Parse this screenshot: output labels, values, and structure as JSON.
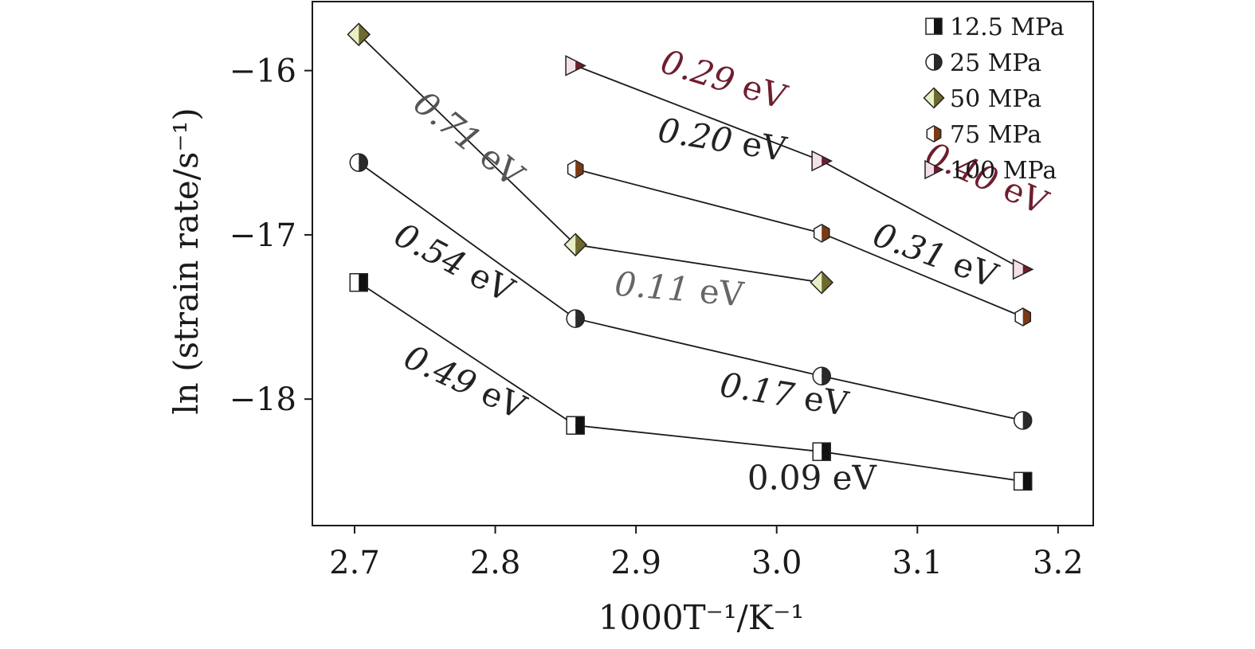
{
  "chart_data": {
    "type": "scatter",
    "xlabel": "1000T⁻¹/K⁻¹",
    "ylabel": "ln (strain rate/s⁻¹)",
    "xlim": [
      2.67,
      3.225
    ],
    "ylim": [
      -18.77,
      -15.58
    ],
    "xticks": [
      2.7,
      2.8,
      2.9,
      3.0,
      3.1,
      3.2
    ],
    "xtick_labels": [
      "2.7",
      "2.8",
      "2.9",
      "3.0",
      "3.1",
      "3.2"
    ],
    "yticks": [
      -16,
      -17,
      -18
    ],
    "ytick_labels": [
      "−16",
      "−17",
      "−18"
    ],
    "grid": false,
    "legend_position": "top-right",
    "series": [
      {
        "name": "12.5 MPa",
        "marker": "square-half",
        "colors": [
          "#ffffff",
          "#111111"
        ],
        "x": [
          2.703,
          2.857,
          3.032,
          3.175
        ],
        "y": [
          -17.29,
          -18.16,
          -18.32,
          -18.5
        ]
      },
      {
        "name": "25 MPa",
        "marker": "circle-half",
        "colors": [
          "#ffffff",
          "#2a2a2a"
        ],
        "x": [
          2.703,
          2.857,
          3.032,
          3.175
        ],
        "y": [
          -16.56,
          -17.51,
          -17.86,
          -18.13
        ]
      },
      {
        "name": "50 MPa",
        "marker": "diamond-half",
        "colors": [
          "#e8efc4",
          "#6e6a2e"
        ],
        "x": [
          2.703,
          2.857,
          3.032
        ],
        "y": [
          -15.78,
          -17.06,
          -17.29
        ]
      },
      {
        "name": "75 MPa",
        "marker": "hexagon-half",
        "colors": [
          "#ffffff",
          "#7a3a14"
        ],
        "x": [
          2.857,
          3.032,
          3.175
        ],
        "y": [
          -16.6,
          -16.99,
          -17.5
        ]
      },
      {
        "name": "100 MPa",
        "marker": "triangle-right-half",
        "colors": [
          "#f4e0ea",
          "#6e1e2e"
        ],
        "x": [
          2.857,
          3.032,
          3.175
        ],
        "y": [
          -15.97,
          -16.55,
          -17.21
        ]
      }
    ],
    "annotations": [
      {
        "text": "0.29 eV",
        "x": 2.96,
        "y": -16.12,
        "angle": 17,
        "color": "#6e1e2e",
        "italic_number": true
      },
      {
        "text": "0.40 eV",
        "x": 3.146,
        "y": -16.72,
        "angle": 24,
        "color": "#6e1e2e",
        "italic_number": true
      },
      {
        "text": "0.20 eV",
        "x": 2.96,
        "y": -16.49,
        "angle": 9,
        "color": "#222222",
        "italic_number": true
      },
      {
        "text": "0.31 eV",
        "x": 3.11,
        "y": -17.19,
        "angle": 20,
        "color": "#222222",
        "italic_number": true
      },
      {
        "text": "0.71 eV",
        "x": 2.776,
        "y": -16.47,
        "angle": 39,
        "color": "#555555",
        "italic_number": true
      },
      {
        "text": "0.11 eV",
        "x": 2.93,
        "y": -17.4,
        "angle": 5,
        "color": "#666666",
        "italic_number": true
      },
      {
        "text": "0.54 eV",
        "x": 2.767,
        "y": -17.23,
        "angle": 28,
        "color": "#222222",
        "italic_number": true
      },
      {
        "text": "0.17 eV",
        "x": 3.004,
        "y": -18.04,
        "angle": 9,
        "color": "#222222",
        "italic_number": true
      },
      {
        "text": "0.49 eV",
        "x": 2.775,
        "y": -17.96,
        "angle": 25,
        "color": "#222222",
        "italic_number": true
      },
      {
        "text": "0.09 eV",
        "x": 3.025,
        "y": -18.55,
        "angle": 0,
        "color": "#222222",
        "italic_number": false
      }
    ]
  }
}
